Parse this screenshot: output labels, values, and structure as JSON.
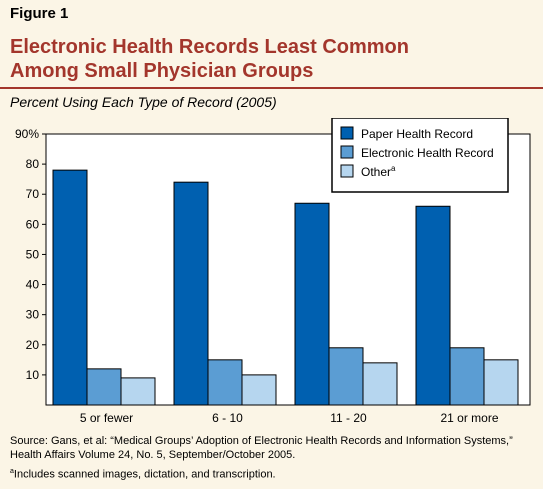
{
  "figure": {
    "label": "Figure 1",
    "title_line1": "Electronic Health Records Least Common",
    "title_line2": "Among Small Physician Groups",
    "subtitle": "Percent Using Each Type of Record (2005)",
    "source_line1": "Source: Gans, et al: “Medical Groups’ Adoption of Electronic Health Records and Information Systems,”",
    "source_line2": "Health Affairs Volume 24, No. 5, September/October 2005.",
    "footnote_marker": "a",
    "footnote_text": "Includes scanned images, dictation, and transcription."
  },
  "colors": {
    "background": "#fbf5e6",
    "title": "#a3362c",
    "paper": "#0060b0",
    "electronic": "#5b9dd3",
    "other": "#b6d6ef"
  },
  "chart_data": {
    "type": "bar",
    "title": "Electronic Health Records Least Common Among Small Physician Groups",
    "xlabel": "",
    "ylabel": "",
    "categories": [
      "5 or fewer",
      "6 - 10",
      "11 - 20",
      "21 or more"
    ],
    "series": [
      {
        "name": "Paper Health Record",
        "values": [
          78,
          74,
          67,
          66
        ]
      },
      {
        "name": "Electronic Health Record",
        "values": [
          12,
          15,
          19,
          19
        ]
      },
      {
        "name": "Other",
        "name_superscript": "a",
        "values": [
          9,
          10,
          14,
          15
        ]
      }
    ],
    "ylim": [
      0,
      90
    ],
    "yticks": [
      10,
      20,
      30,
      40,
      50,
      60,
      70,
      80,
      90
    ],
    "ytick_labels": [
      "10",
      "20",
      "30",
      "40",
      "50",
      "60",
      "70",
      "80",
      "90%"
    ],
    "legend_position": "top-right",
    "grid": false
  }
}
